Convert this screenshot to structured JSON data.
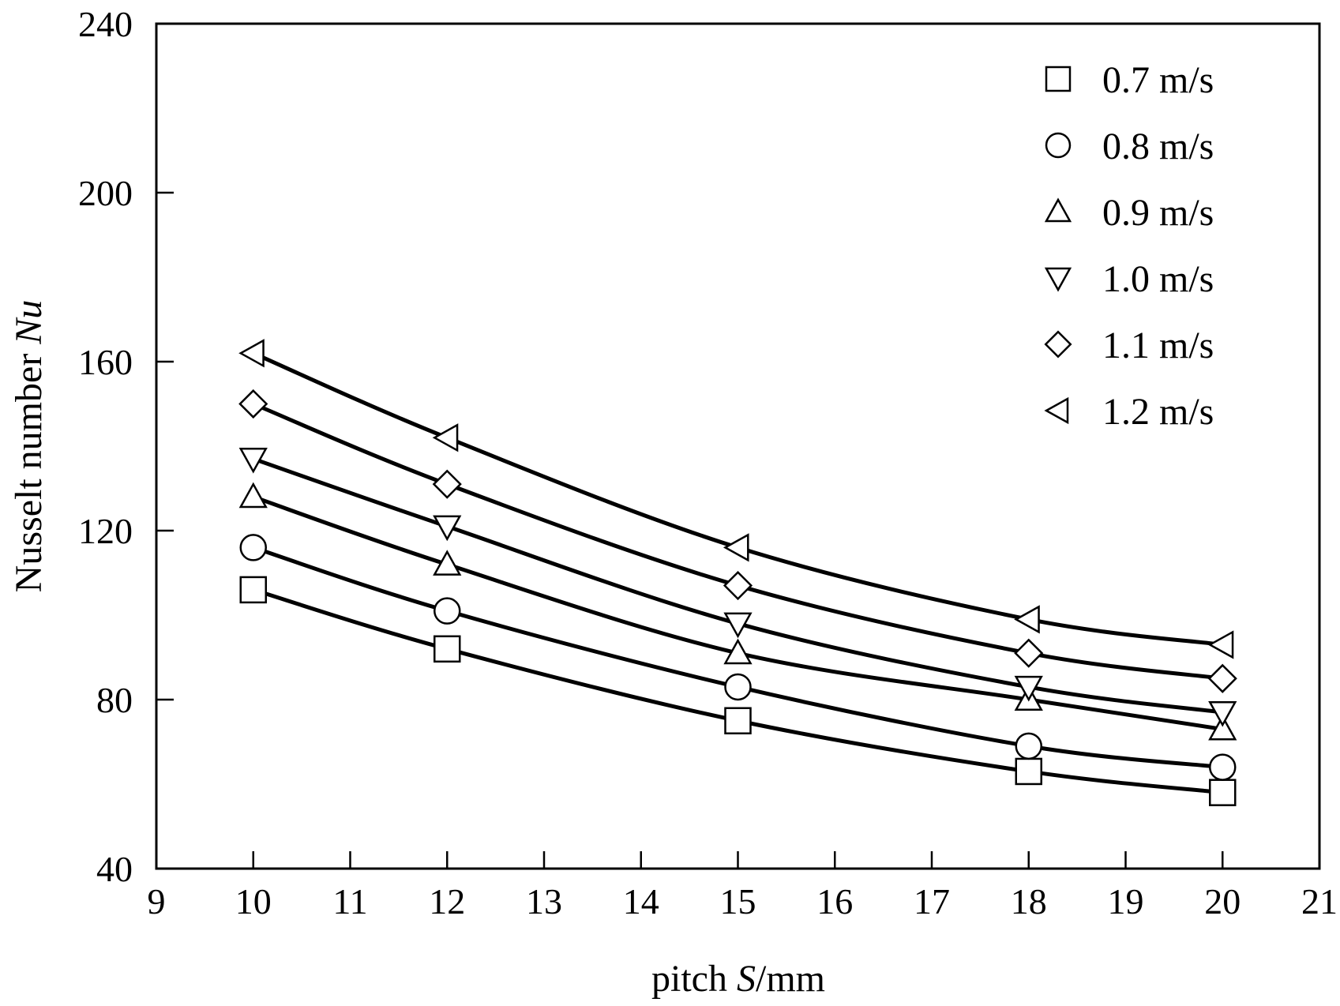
{
  "chart_data": {
    "type": "line",
    "xlabel_prefix": "pitch ",
    "xlabel_var": "S",
    "xlabel_suffix": "/mm",
    "ylabel_prefix": "Nusselt number ",
    "ylabel_var": "Nu",
    "xlim": [
      9,
      21
    ],
    "ylim": [
      40,
      240
    ],
    "xticks": [
      9,
      10,
      11,
      12,
      13,
      14,
      15,
      16,
      17,
      18,
      19,
      20,
      21
    ],
    "yticks": [
      40,
      80,
      120,
      160,
      200,
      240
    ],
    "x": [
      10,
      12,
      15,
      18,
      20
    ],
    "legend_position": "top-right",
    "color": "#000000",
    "series": [
      {
        "name": "0.7 m/s",
        "marker": "square",
        "values": [
          106,
          92,
          75,
          63,
          58
        ]
      },
      {
        "name": "0.8 m/s",
        "marker": "circle",
        "values": [
          116,
          101,
          83,
          69,
          64
        ]
      },
      {
        "name": "0.9 m/s",
        "marker": "triangle-up",
        "values": [
          128,
          112,
          91,
          80,
          73
        ]
      },
      {
        "name": "1.0 m/s",
        "marker": "triangle-down",
        "values": [
          137,
          121,
          98,
          83,
          77
        ]
      },
      {
        "name": "1.1 m/s",
        "marker": "diamond",
        "values": [
          150,
          131,
          107,
          91,
          85
        ]
      },
      {
        "name": "1.2 m/s",
        "marker": "triangle-left",
        "values": [
          162,
          142,
          116,
          99,
          93
        ]
      }
    ]
  }
}
